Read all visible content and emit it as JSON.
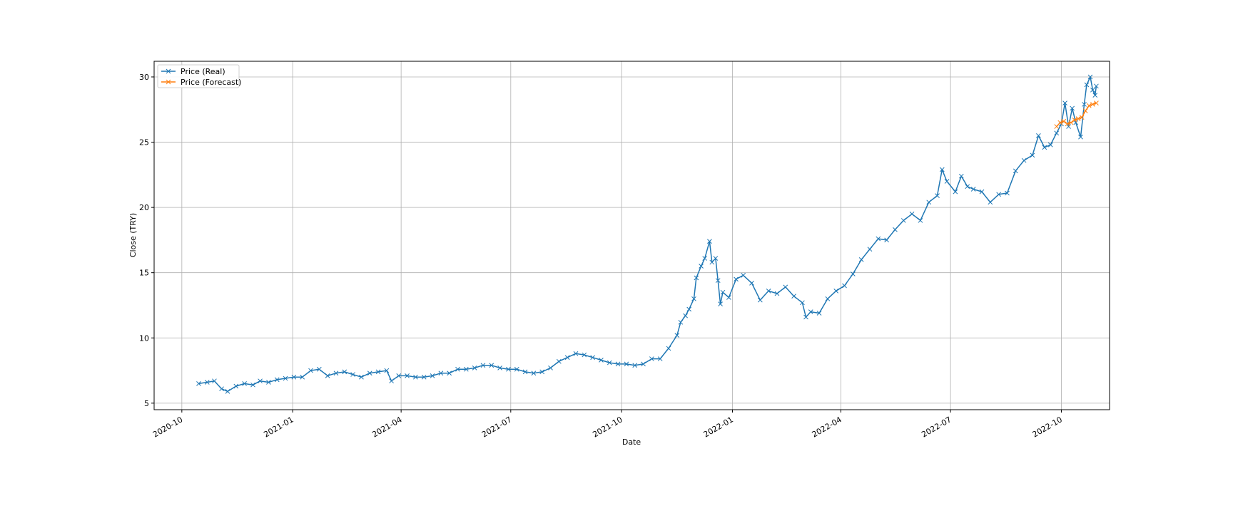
{
  "chart_data": {
    "type": "line",
    "title": "",
    "xlabel": "Date",
    "ylabel": "Close (TRY)",
    "ylim": [
      4.5,
      31.2
    ],
    "xlim": [
      "2020-09-08",
      "2022-11-10"
    ],
    "grid": true,
    "legend_position": "top-left",
    "marker": "x",
    "x_ticks": [
      "2020-10",
      "2021-01",
      "2021-04",
      "2021-07",
      "2021-10",
      "2022-01",
      "2022-04",
      "2022-07",
      "2022-10"
    ],
    "y_ticks": [
      5,
      10,
      15,
      20,
      25,
      30
    ],
    "series": [
      {
        "name": "Price (Real)",
        "color": "#1f77b4",
        "points": [
          [
            "2020-10-15",
            6.5
          ],
          [
            "2020-10-22",
            6.6
          ],
          [
            "2020-10-28",
            6.7
          ],
          [
            "2020-11-03",
            6.1
          ],
          [
            "2020-11-08",
            5.9
          ],
          [
            "2020-11-15",
            6.3
          ],
          [
            "2020-11-22",
            6.5
          ],
          [
            "2020-11-29",
            6.4
          ],
          [
            "2020-12-05",
            6.7
          ],
          [
            "2020-12-12",
            6.6
          ],
          [
            "2020-12-19",
            6.8
          ],
          [
            "2020-12-26",
            6.9
          ],
          [
            "2021-01-02",
            7.0
          ],
          [
            "2021-01-09",
            7.0
          ],
          [
            "2021-01-16",
            7.5
          ],
          [
            "2021-01-23",
            7.6
          ],
          [
            "2021-01-30",
            7.1
          ],
          [
            "2021-02-06",
            7.3
          ],
          [
            "2021-02-13",
            7.4
          ],
          [
            "2021-02-20",
            7.2
          ],
          [
            "2021-02-27",
            7.0
          ],
          [
            "2021-03-06",
            7.3
          ],
          [
            "2021-03-13",
            7.4
          ],
          [
            "2021-03-20",
            7.5
          ],
          [
            "2021-03-24",
            6.7
          ],
          [
            "2021-03-30",
            7.1
          ],
          [
            "2021-04-06",
            7.1
          ],
          [
            "2021-04-13",
            7.0
          ],
          [
            "2021-04-20",
            7.0
          ],
          [
            "2021-04-27",
            7.1
          ],
          [
            "2021-05-04",
            7.3
          ],
          [
            "2021-05-11",
            7.3
          ],
          [
            "2021-05-18",
            7.6
          ],
          [
            "2021-05-25",
            7.6
          ],
          [
            "2021-06-01",
            7.7
          ],
          [
            "2021-06-08",
            7.9
          ],
          [
            "2021-06-15",
            7.9
          ],
          [
            "2021-06-22",
            7.7
          ],
          [
            "2021-06-29",
            7.6
          ],
          [
            "2021-07-06",
            7.6
          ],
          [
            "2021-07-13",
            7.4
          ],
          [
            "2021-07-20",
            7.3
          ],
          [
            "2021-07-27",
            7.4
          ],
          [
            "2021-08-03",
            7.7
          ],
          [
            "2021-08-10",
            8.2
          ],
          [
            "2021-08-17",
            8.5
          ],
          [
            "2021-08-24",
            8.8
          ],
          [
            "2021-08-31",
            8.7
          ],
          [
            "2021-09-07",
            8.5
          ],
          [
            "2021-09-14",
            8.3
          ],
          [
            "2021-09-21",
            8.1
          ],
          [
            "2021-09-28",
            8.0
          ],
          [
            "2021-10-05",
            8.0
          ],
          [
            "2021-10-12",
            7.9
          ],
          [
            "2021-10-19",
            8.0
          ],
          [
            "2021-10-26",
            8.4
          ],
          [
            "2021-11-02",
            8.4
          ],
          [
            "2021-11-09",
            9.2
          ],
          [
            "2021-11-16",
            10.2
          ],
          [
            "2021-11-19",
            11.2
          ],
          [
            "2021-11-23",
            11.7
          ],
          [
            "2021-11-26",
            12.2
          ],
          [
            "2021-11-30",
            13.0
          ],
          [
            "2021-12-02",
            14.6
          ],
          [
            "2021-12-06",
            15.5
          ],
          [
            "2021-12-09",
            16.1
          ],
          [
            "2021-12-13",
            17.4
          ],
          [
            "2021-12-15",
            15.8
          ],
          [
            "2021-12-18",
            16.1
          ],
          [
            "2021-12-20",
            14.4
          ],
          [
            "2021-12-22",
            12.6
          ],
          [
            "2021-12-24",
            13.5
          ],
          [
            "2021-12-29",
            13.1
          ],
          [
            "2022-01-04",
            14.5
          ],
          [
            "2022-01-10",
            14.8
          ],
          [
            "2022-01-17",
            14.2
          ],
          [
            "2022-01-24",
            12.9
          ],
          [
            "2022-01-31",
            13.6
          ],
          [
            "2022-02-07",
            13.4
          ],
          [
            "2022-02-14",
            13.9
          ],
          [
            "2022-02-21",
            13.2
          ],
          [
            "2022-02-28",
            12.7
          ],
          [
            "2022-03-03",
            11.6
          ],
          [
            "2022-03-07",
            12.0
          ],
          [
            "2022-03-14",
            11.9
          ],
          [
            "2022-03-21",
            13.0
          ],
          [
            "2022-03-28",
            13.6
          ],
          [
            "2022-04-04",
            14.0
          ],
          [
            "2022-04-11",
            14.9
          ],
          [
            "2022-04-18",
            16.0
          ],
          [
            "2022-04-25",
            16.8
          ],
          [
            "2022-05-02",
            17.6
          ],
          [
            "2022-05-09",
            17.5
          ],
          [
            "2022-05-16",
            18.3
          ],
          [
            "2022-05-23",
            19.0
          ],
          [
            "2022-05-30",
            19.5
          ],
          [
            "2022-06-06",
            19.0
          ],
          [
            "2022-06-13",
            20.4
          ],
          [
            "2022-06-20",
            20.9
          ],
          [
            "2022-06-24",
            22.9
          ],
          [
            "2022-06-28",
            22.0
          ],
          [
            "2022-07-05",
            21.2
          ],
          [
            "2022-07-10",
            22.4
          ],
          [
            "2022-07-15",
            21.6
          ],
          [
            "2022-07-20",
            21.4
          ],
          [
            "2022-07-27",
            21.2
          ],
          [
            "2022-08-03",
            20.4
          ],
          [
            "2022-08-10",
            21.0
          ],
          [
            "2022-08-17",
            21.1
          ],
          [
            "2022-08-24",
            22.8
          ],
          [
            "2022-08-31",
            23.6
          ],
          [
            "2022-09-07",
            24.0
          ],
          [
            "2022-09-12",
            25.5
          ],
          [
            "2022-09-17",
            24.6
          ],
          [
            "2022-09-22",
            24.8
          ],
          [
            "2022-09-27",
            25.7
          ],
          [
            "2022-10-01",
            26.4
          ],
          [
            "2022-10-04",
            28.0
          ],
          [
            "2022-10-07",
            26.2
          ],
          [
            "2022-10-10",
            27.6
          ],
          [
            "2022-10-13",
            26.5
          ],
          [
            "2022-10-17",
            25.4
          ],
          [
            "2022-10-20",
            27.9
          ],
          [
            "2022-10-22",
            29.4
          ],
          [
            "2022-10-25",
            30.0
          ],
          [
            "2022-10-27",
            29.0
          ],
          [
            "2022-10-29",
            28.6
          ],
          [
            "2022-10-30",
            29.3
          ]
        ]
      },
      {
        "name": "Price (Forecast)",
        "color": "#ff7f0e",
        "points": [
          [
            "2022-09-27",
            26.2
          ],
          [
            "2022-09-30",
            26.5
          ],
          [
            "2022-10-03",
            26.6
          ],
          [
            "2022-10-06",
            26.4
          ],
          [
            "2022-10-09",
            26.5
          ],
          [
            "2022-10-12",
            26.7
          ],
          [
            "2022-10-15",
            26.8
          ],
          [
            "2022-10-18",
            26.9
          ],
          [
            "2022-10-21",
            27.4
          ],
          [
            "2022-10-24",
            27.8
          ],
          [
            "2022-10-27",
            27.9
          ],
          [
            "2022-10-30",
            28.0
          ]
        ]
      }
    ]
  }
}
